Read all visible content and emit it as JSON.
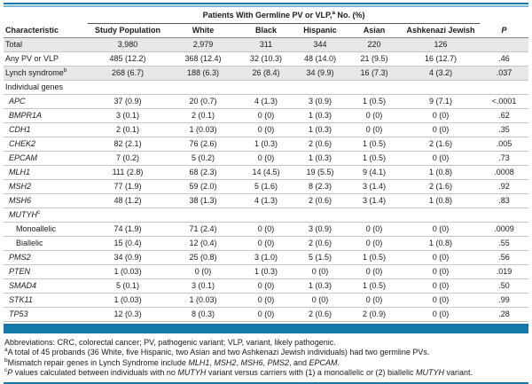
{
  "colors": {
    "accent_teal": "#1478a8",
    "light_blue": "#7cb6d4",
    "row_shade": "#e7e7e7"
  },
  "table": {
    "group_header": {
      "prefix": "Patients With Germline PV or VLP,",
      "sup": "a",
      "suffix": " No. (%)"
    },
    "columns": [
      "Characteristic",
      "Study Population",
      "White",
      "Black",
      "Hispanic",
      "Asian",
      "Ashkenazi Jewish",
      "P"
    ],
    "rows": [
      {
        "label": "Total",
        "shaded": true,
        "values": [
          "3,980",
          "2,979",
          "311",
          "344",
          "220",
          "126"
        ],
        "p": ""
      },
      {
        "label": "Any PV or VLP",
        "values": [
          "485 (12.2)",
          "368 (12.4)",
          "32 (10.3)",
          "48 (14.0)",
          "21 (9.5)",
          "16 (12.7)"
        ],
        "p": ".46"
      },
      {
        "label": "Lynch syndrome",
        "sup": "b",
        "shaded": true,
        "values": [
          "268 (6.7)",
          "188 (6.3)",
          "26 (8.4)",
          "34 (9.9)",
          "16 (7.3)",
          "4 (3.2)"
        ],
        "p": ".037"
      },
      {
        "label": "Individual genes",
        "section": true
      },
      {
        "label": "APC",
        "italic": true,
        "indent": 1,
        "values": [
          "37 (0.9)",
          "20 (0.7)",
          "4 (1.3)",
          "3 (0.9)",
          "1 (0.5)",
          "9 (7.1)"
        ],
        "p": "<.0001"
      },
      {
        "label": "BMPR1A",
        "italic": true,
        "indent": 1,
        "values": [
          "3 (0.1)",
          "2 (0.1)",
          "0 (0)",
          "1 (0.3)",
          "0 (0)",
          "0 (0)"
        ],
        "p": ".62"
      },
      {
        "label": "CDH1",
        "italic": true,
        "indent": 1,
        "values": [
          "2 (0.1)",
          "1 (0.03)",
          "0 (0)",
          "1 (0.3)",
          "0 (0)",
          "0 (0)"
        ],
        "p": ".35"
      },
      {
        "label": "CHEK2",
        "italic": true,
        "indent": 1,
        "values": [
          "82 (2.1)",
          "76 (2.6)",
          "1 (0.3)",
          "2 (0.6)",
          "1 (0.5)",
          "2 (1.6)"
        ],
        "p": ".005"
      },
      {
        "label": "EPCAM",
        "italic": true,
        "indent": 1,
        "values": [
          "7 (0.2)",
          "5 (0.2)",
          "0 (0)",
          "1 (0.3)",
          "1 (0.5)",
          "0 (0)"
        ],
        "p": ".73"
      },
      {
        "label": "MLH1",
        "italic": true,
        "indent": 1,
        "values": [
          "111 (2.8)",
          "68 (2.3)",
          "14 (4.5)",
          "19 (5.5)",
          "9 (4.1)",
          "1 (0.8)"
        ],
        "p": ".0008"
      },
      {
        "label": "MSH2",
        "italic": true,
        "indent": 1,
        "values": [
          "77 (1.9)",
          "59 (2.0)",
          "5 (1.6)",
          "8 (2.3)",
          "3 (1.4)",
          "2 (1.6)"
        ],
        "p": ".92"
      },
      {
        "label": "MSH6",
        "italic": true,
        "indent": 1,
        "values": [
          "48 (1.2)",
          "38 (1.3)",
          "4 (1.3)",
          "2 (0.6)",
          "3 (1.4)",
          "1 (0.8)"
        ],
        "p": ".83"
      },
      {
        "label": "MUTYH",
        "italic": true,
        "sup": "c",
        "indent": 1,
        "section": true
      },
      {
        "label": "Monoallelic",
        "indent": 2,
        "values": [
          "74 (1.9)",
          "71 (2.4)",
          "0 (0)",
          "3 (0.9)",
          "0 (0)",
          "0 (0)"
        ],
        "p": ".0009"
      },
      {
        "label": "Biallelic",
        "indent": 2,
        "values": [
          "15 (0.4)",
          "12 (0.4)",
          "0 (0)",
          "2 (0.6)",
          "0 (0)",
          "1 (0.8)"
        ],
        "p": ".55"
      },
      {
        "label": "PMS2",
        "italic": true,
        "indent": 1,
        "values": [
          "34 (0.9)",
          "25 (0.8)",
          "3 (1.0)",
          "5 (1.5)",
          "1 (0.5)",
          "0 (0)"
        ],
        "p": ".56"
      },
      {
        "label": "PTEN",
        "italic": true,
        "indent": 1,
        "values": [
          "1 (0.03)",
          "0 (0)",
          "1 (0.3)",
          "0 (0)",
          "0 (0)",
          "0 (0)"
        ],
        "p": ".019"
      },
      {
        "label": "SMAD4",
        "italic": true,
        "indent": 1,
        "values": [
          "5 (0.1)",
          "3 (0.1)",
          "0 (0)",
          "1 (0.3)",
          "1 (0.5)",
          "0 (0)"
        ],
        "p": ".50"
      },
      {
        "label": "STK11",
        "italic": true,
        "indent": 1,
        "values": [
          "1 (0.03)",
          "1 (0.03)",
          "0 (0)",
          "0 (0)",
          "0 (0)",
          "0 (0)"
        ],
        "p": ".99"
      },
      {
        "label": "TP53",
        "italic": true,
        "indent": 1,
        "values": [
          "12 (0.3)",
          "8 (0.3)",
          "0 (0)",
          "2 (0.6)",
          "2 (0.9)",
          "0 (0)"
        ],
        "p": ".28"
      }
    ]
  },
  "footnotes": [
    {
      "sup": "",
      "segments": [
        {
          "t": "Abbreviations: CRC, colorectal cancer; PV, pathogenic variant; VLP, variant, likely pathogenic."
        }
      ]
    },
    {
      "sup": "a",
      "segments": [
        {
          "t": "A total of 45 probands (36 White, five Hispanic, two Asian and two Ashkenazi Jewish individuals) had two germline PVs."
        }
      ]
    },
    {
      "sup": "b",
      "segments": [
        {
          "t": "Mismatch repair genes in Lynch Syndrome include "
        },
        {
          "t": "MLH1",
          "i": true
        },
        {
          "t": ", "
        },
        {
          "t": "MSH2",
          "i": true
        },
        {
          "t": ", "
        },
        {
          "t": "MSH6",
          "i": true
        },
        {
          "t": ", "
        },
        {
          "t": "PMS2",
          "i": true
        },
        {
          "t": ", and "
        },
        {
          "t": "EPCAM",
          "i": true
        },
        {
          "t": "."
        }
      ]
    },
    {
      "sup": "c",
      "segments": [
        {
          "t": "P",
          "i": true
        },
        {
          "t": " values calculated between individuals with no "
        },
        {
          "t": "MUTYH",
          "i": true
        },
        {
          "t": " variant versus carriers with (1) a monoallelic or (2) biallelic "
        },
        {
          "t": "MUTYH",
          "i": true
        },
        {
          "t": " variant."
        }
      ]
    }
  ]
}
